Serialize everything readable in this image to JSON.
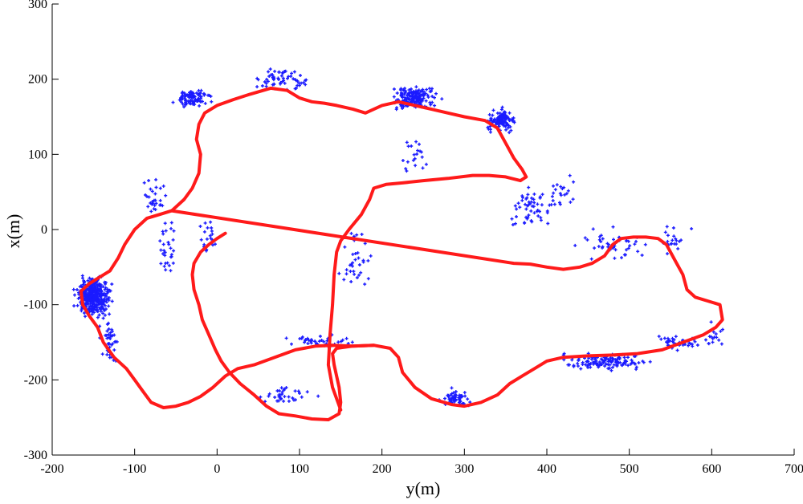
{
  "chart_data": {
    "type": "scatter",
    "title": "",
    "xlabel": "y(m)",
    "ylabel": "x(m)",
    "xlim": [
      -200,
      700
    ],
    "ylim": [
      -300,
      300
    ],
    "xticks": [
      -200,
      -100,
      0,
      100,
      200,
      300,
      400,
      500,
      600,
      700
    ],
    "yticks": [
      -300,
      -200,
      -100,
      0,
      100,
      200,
      300
    ],
    "xtick_labels": [
      "-200",
      "-100",
      "0",
      "100",
      "200",
      "300",
      "400",
      "500",
      "600",
      "700"
    ],
    "ytick_labels": [
      "-300",
      "-200",
      "-100",
      "0",
      "100",
      "200",
      "300"
    ],
    "grid": false,
    "legend": false,
    "colors": {
      "trajectory": "#ff1a1a",
      "landmarks": "#1a1aff"
    },
    "series": [
      {
        "kind": "line",
        "points": [
          [
            10,
            -5
          ],
          [
            0,
            -12
          ],
          [
            -10,
            -20
          ],
          [
            -20,
            -30
          ],
          [
            -28,
            -45
          ],
          [
            -30,
            -60
          ],
          [
            -28,
            -80
          ],
          [
            -22,
            -100
          ],
          [
            -18,
            -120
          ],
          [
            -10,
            -140
          ],
          [
            -2,
            -160
          ],
          [
            5,
            -175
          ],
          [
            15,
            -190
          ],
          [
            28,
            -205
          ],
          [
            45,
            -220
          ],
          [
            60,
            -235
          ],
          [
            75,
            -245
          ],
          [
            95,
            -248
          ],
          [
            115,
            -252
          ],
          [
            135,
            -253
          ],
          [
            148,
            -245
          ],
          [
            150,
            -230
          ],
          [
            148,
            -210
          ],
          [
            142,
            -180
          ],
          [
            140,
            -165
          ],
          [
            145,
            -158
          ],
          [
            165,
            -155
          ],
          [
            190,
            -154
          ],
          [
            210,
            -158
          ],
          [
            220,
            -170
          ],
          [
            225,
            -190
          ],
          [
            240,
            -210
          ],
          [
            260,
            -225
          ],
          [
            285,
            -233
          ],
          [
            300,
            -235
          ],
          [
            320,
            -230
          ],
          [
            340,
            -220
          ],
          [
            355,
            -205
          ],
          [
            370,
            -195
          ],
          [
            385,
            -185
          ],
          [
            400,
            -175
          ],
          [
            420,
            -170
          ],
          [
            450,
            -168
          ],
          [
            480,
            -167
          ],
          [
            510,
            -165
          ],
          [
            540,
            -160
          ],
          [
            565,
            -150
          ],
          [
            590,
            -140
          ],
          [
            605,
            -130
          ],
          [
            613,
            -120
          ],
          [
            610,
            -100
          ],
          [
            595,
            -95
          ],
          [
            580,
            -90
          ],
          [
            570,
            -80
          ],
          [
            565,
            -60
          ],
          [
            555,
            -40
          ],
          [
            545,
            -20
          ],
          [
            535,
            -12
          ],
          [
            520,
            -10
          ],
          [
            505,
            -10
          ],
          [
            490,
            -12
          ],
          [
            480,
            -20
          ],
          [
            470,
            -35
          ],
          [
            455,
            -45
          ],
          [
            440,
            -50
          ],
          [
            420,
            -53
          ],
          [
            400,
            -50
          ],
          [
            380,
            -46
          ],
          [
            360,
            -45
          ],
          [
            -55,
            25
          ],
          [
            -40,
            40
          ],
          [
            -30,
            55
          ],
          [
            -22,
            75
          ],
          [
            -20,
            100
          ],
          [
            -25,
            120
          ],
          [
            -22,
            140
          ],
          [
            -15,
            155
          ],
          [
            0,
            165
          ],
          [
            20,
            173
          ],
          [
            40,
            180
          ],
          [
            65,
            188
          ],
          [
            85,
            185
          ],
          [
            100,
            175
          ],
          [
            115,
            170
          ],
          [
            130,
            168
          ],
          [
            145,
            165
          ],
          [
            165,
            160
          ],
          [
            180,
            155
          ],
          [
            200,
            165
          ],
          [
            220,
            170
          ],
          [
            240,
            165
          ],
          [
            260,
            160
          ],
          [
            280,
            155
          ],
          [
            300,
            150
          ],
          [
            325,
            145
          ],
          [
            340,
            135
          ],
          [
            350,
            115
          ],
          [
            360,
            95
          ],
          [
            370,
            80
          ],
          [
            375,
            70
          ],
          [
            368,
            65
          ],
          [
            350,
            70
          ],
          [
            330,
            72
          ],
          [
            310,
            72
          ],
          [
            280,
            68
          ],
          [
            250,
            65
          ],
          [
            225,
            62
          ],
          [
            205,
            60
          ],
          [
            190,
            55
          ],
          [
            185,
            40
          ],
          [
            175,
            20
          ],
          [
            160,
            0
          ],
          [
            150,
            -15
          ],
          [
            145,
            -30
          ],
          [
            142,
            -60
          ],
          [
            140,
            -100
          ],
          [
            137,
            -140
          ],
          [
            135,
            -180
          ],
          [
            140,
            -210
          ],
          [
            150,
            -240
          ]
        ]
      },
      {
        "kind": "line",
        "points": [
          [
            -55,
            25
          ],
          [
            -70,
            20
          ],
          [
            -85,
            15
          ],
          [
            -100,
            0
          ],
          [
            -112,
            -20
          ],
          [
            -120,
            -38
          ],
          [
            -130,
            -55
          ],
          [
            -145,
            -65
          ],
          [
            -155,
            -72
          ],
          [
            -165,
            -82
          ],
          [
            -163,
            -100
          ],
          [
            -155,
            -115
          ],
          [
            -145,
            -130
          ],
          [
            -138,
            -150
          ],
          [
            -125,
            -170
          ],
          [
            -110,
            -185
          ],
          [
            -100,
            -200
          ],
          [
            -90,
            -215
          ],
          [
            -80,
            -230
          ],
          [
            -65,
            -237
          ],
          [
            -50,
            -235
          ],
          [
            -35,
            -230
          ],
          [
            -20,
            -222
          ],
          [
            -5,
            -210
          ],
          [
            10,
            -195
          ],
          [
            25,
            -185
          ],
          [
            45,
            -180
          ],
          [
            70,
            -170
          ],
          [
            95,
            -160
          ],
          [
            120,
            -155
          ],
          [
            140,
            -154
          ],
          [
            165,
            -155
          ],
          [
            190,
            -154
          ]
        ]
      }
    ]
  }
}
